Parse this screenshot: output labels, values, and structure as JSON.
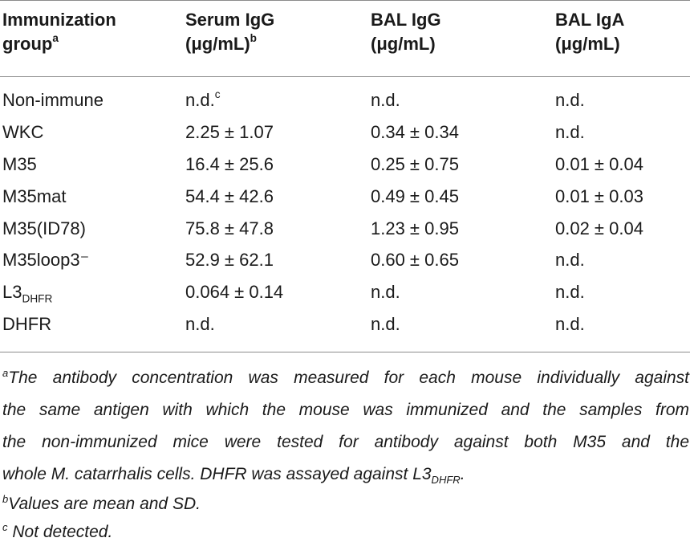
{
  "header": {
    "col1_line1": "Immunization",
    "col1_line2": "group",
    "col1_sup": "a",
    "col2_line1": "Serum IgG",
    "col2_line2": "(μg/mL)",
    "col2_sup": "b",
    "col3_line1": "BAL IgG",
    "col3_line2": "(μg/mL)",
    "col4_line1": "BAL IgA",
    "col4_line2": "(μg/mL)"
  },
  "rows": [
    {
      "group": "Non-immune",
      "group_sub": "",
      "serum": "n.d.",
      "serum_sup": "c",
      "bal_igg": "n.d.",
      "bal_iga": "n.d."
    },
    {
      "group": "WKC",
      "group_sub": "",
      "serum": "2.25 ± 1.07",
      "serum_sup": "",
      "bal_igg": "0.34 ± 0.34",
      "bal_iga": "n.d."
    },
    {
      "group": "M35",
      "group_sub": "",
      "serum": "16.4 ± 25.6",
      "serum_sup": "",
      "bal_igg": "0.25 ± 0.75",
      "bal_iga": "0.01 ± 0.04"
    },
    {
      "group": "M35mat",
      "group_sub": "",
      "serum": "54.4 ± 42.6",
      "serum_sup": "",
      "bal_igg": "0.49 ± 0.45",
      "bal_iga": "0.01 ± 0.03"
    },
    {
      "group": "M35(ID78)",
      "group_sub": "",
      "serum": "75.8 ± 47.8",
      "serum_sup": "",
      "bal_igg": "1.23 ± 0.95",
      "bal_iga": "0.02 ± 0.04"
    },
    {
      "group": "M35loop3⁻",
      "group_sub": "",
      "serum": "52.9 ± 62.1",
      "serum_sup": "",
      "bal_igg": "0.60 ± 0.65",
      "bal_iga": "n.d."
    },
    {
      "group": "L3",
      "group_sub": "DHFR",
      "serum": "0.064 ± 0.14",
      "serum_sup": "",
      "bal_igg": "n.d.",
      "bal_iga": "n.d."
    },
    {
      "group": "DHFR",
      "group_sub": "",
      "serum": "n.d.",
      "serum_sup": "",
      "bal_igg": "n.d.",
      "bal_iga": "n.d."
    }
  ],
  "footnotes": {
    "a_mark": "a",
    "a_line1": "The antibody concentration was measured for each mouse individually against",
    "a_line2": "the same antigen with which the mouse was immunized and the samples from",
    "a_line3": "the non-immunized mice were tested for antibody against both M35 and the",
    "a_line4_pre": "whole M. catarrhalis cells. DHFR was assayed against L3",
    "a_line4_sub": "DHFR",
    "a_line4_post": ".",
    "b_mark": "b",
    "b_text": "Values are mean and SD.",
    "c_mark": "c",
    "c_text": "Not detected."
  }
}
